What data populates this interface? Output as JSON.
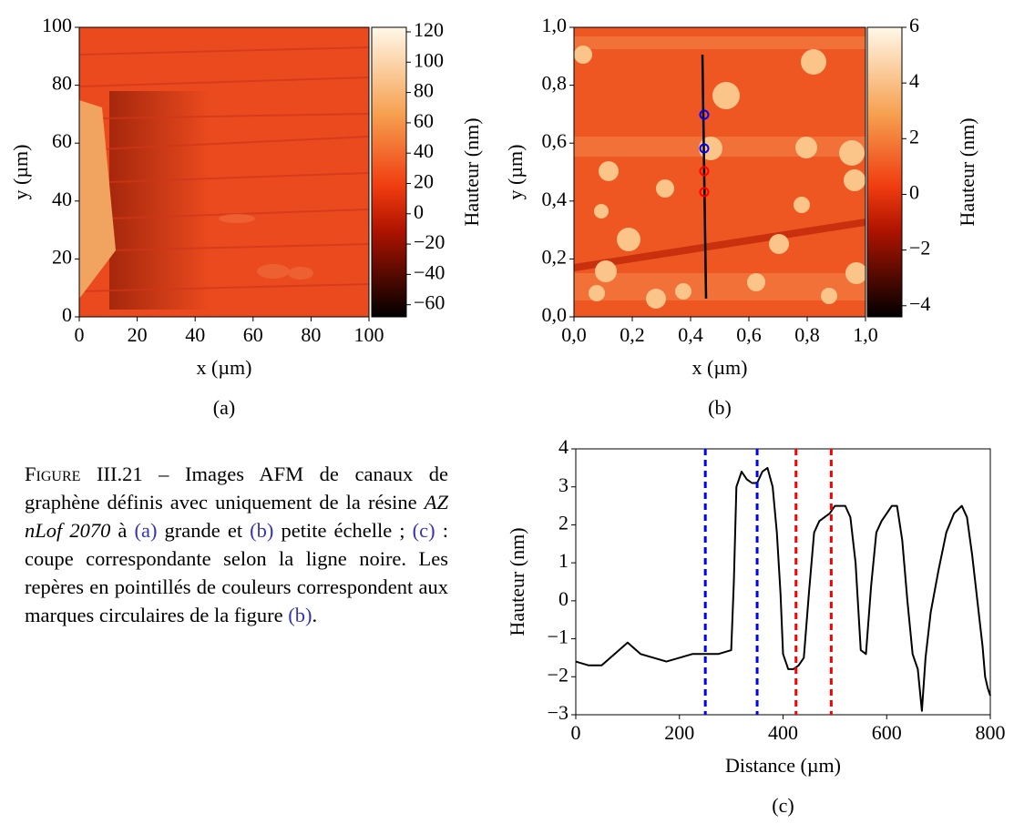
{
  "chart_data": [
    {
      "type": "heatmap",
      "caption": "(a)",
      "xlabel": "x (µm)",
      "ylabel": "y (µm)",
      "xlim": [
        0,
        100
      ],
      "xticks": [
        0,
        20,
        40,
        60,
        80,
        100
      ],
      "ylim": [
        0,
        100
      ],
      "yticks": [
        0,
        20,
        40,
        60,
        80,
        100
      ],
      "colorbar": {
        "label": "Hauteur (nm)",
        "lim": [
          -68,
          123
        ],
        "ticks": [
          {
            "value": -60,
            "label": "−60"
          },
          {
            "value": -40,
            "label": "−40"
          },
          {
            "value": -20,
            "label": "−20"
          },
          0,
          20,
          40,
          60,
          80,
          100,
          120
        ]
      }
    },
    {
      "type": "heatmap",
      "caption": "(b)",
      "xlabel": "x (µm)",
      "ylabel": "y (µm)",
      "xlim": [
        0,
        1
      ],
      "xticks": [
        {
          "value": 0,
          "label": "0,0"
        },
        {
          "value": 0.2,
          "label": "0,2"
        },
        {
          "value": 0.4,
          "label": "0,4"
        },
        {
          "value": 0.6,
          "label": "0,6"
        },
        {
          "value": 0.8,
          "label": "0,8"
        },
        {
          "value": 1,
          "label": "1,0"
        }
      ],
      "ylim": [
        0,
        1
      ],
      "yticks": [
        {
          "value": 0,
          "label": "0,0"
        },
        {
          "value": 0.2,
          "label": "0,2"
        },
        {
          "value": 0.4,
          "label": "0,4"
        },
        {
          "value": 0.6,
          "label": "0,6"
        },
        {
          "value": 0.8,
          "label": "0,8"
        },
        {
          "value": 1,
          "label": "1,0"
        }
      ],
      "colorbar": {
        "label": "Hauteur (nm)",
        "lim": [
          -4.4,
          6
        ],
        "ticks": [
          {
            "value": -4,
            "label": "−4"
          },
          {
            "value": -2,
            "label": "−2"
          },
          0,
          2,
          4,
          6
        ]
      }
    },
    {
      "type": "line",
      "caption": "(c)",
      "xlabel": "Distance (µm)",
      "ylabel": "Hauteur (nm)",
      "xlim": [
        0,
        800
      ],
      "xticks": [
        0,
        200,
        400,
        600,
        800
      ],
      "ylim": [
        -3,
        4
      ],
      "yticks": [
        {
          "value": -3,
          "label": "−3"
        },
        {
          "value": -2,
          "label": "−2"
        },
        {
          "value": -1,
          "label": "−1"
        },
        0,
        1,
        2,
        3,
        4
      ],
      "x": [
        0,
        25,
        50,
        75,
        100,
        125,
        150,
        175,
        200,
        225,
        250,
        275,
        300,
        305,
        310,
        320,
        330,
        340,
        350,
        360,
        370,
        380,
        388,
        395,
        400,
        410,
        420,
        430,
        440,
        450,
        460,
        470,
        480,
        490,
        500,
        510,
        520,
        530,
        540,
        550,
        560,
        570,
        580,
        590,
        600,
        610,
        620,
        630,
        640,
        650,
        660,
        668,
        675,
        685,
        700,
        715,
        730,
        745,
        755,
        765,
        775,
        785,
        790,
        795,
        800
      ],
      "series": [
        {
          "color": "#000000",
          "values": [
            -1.6,
            -1.7,
            -1.7,
            -1.4,
            -1.1,
            -1.4,
            -1.5,
            -1.6,
            -1.5,
            -1.4,
            -1.4,
            -1.4,
            -1.3,
            0.5,
            3.0,
            3.4,
            3.2,
            3.1,
            3.1,
            3.4,
            3.5,
            3.0,
            1.8,
            0.2,
            -1.4,
            -1.8,
            -1.8,
            -1.7,
            -1.5,
            0.2,
            1.8,
            2.1,
            2.2,
            2.3,
            2.5,
            2.5,
            2.5,
            2.2,
            1.0,
            -1.3,
            -1.4,
            0.4,
            1.8,
            2.1,
            2.3,
            2.5,
            2.5,
            1.6,
            0.0,
            -1.4,
            -1.8,
            -2.9,
            -1.5,
            -0.3,
            0.8,
            1.8,
            2.3,
            2.5,
            2.2,
            1.2,
            0.0,
            -1.2,
            -2.0,
            -2.3,
            -2.5
          ]
        }
      ],
      "vlines": [
        {
          "x": 250,
          "color": "#0000ff"
        },
        {
          "x": 350,
          "color": "#0000ff"
        },
        {
          "x": 425,
          "color": "#ff0000"
        },
        {
          "x": 493,
          "color": "#ff0000"
        }
      ]
    }
  ],
  "caption": {
    "label": "Figure III.21",
    "dash": " – ",
    "parts": [
      "Images AFM de canaux de graphène définis avec uniquement de la résine ",
      "AZ nLof 2070",
      " à ",
      "(a)",
      " grande et ",
      "(b)",
      " petite échelle ; ",
      "(c)",
      " : coupe correspondante selon la ligne noire. Les repères en pointillés de couleurs correspondent aux marques circulaires de la figure ",
      "(b)",
      "."
    ]
  }
}
